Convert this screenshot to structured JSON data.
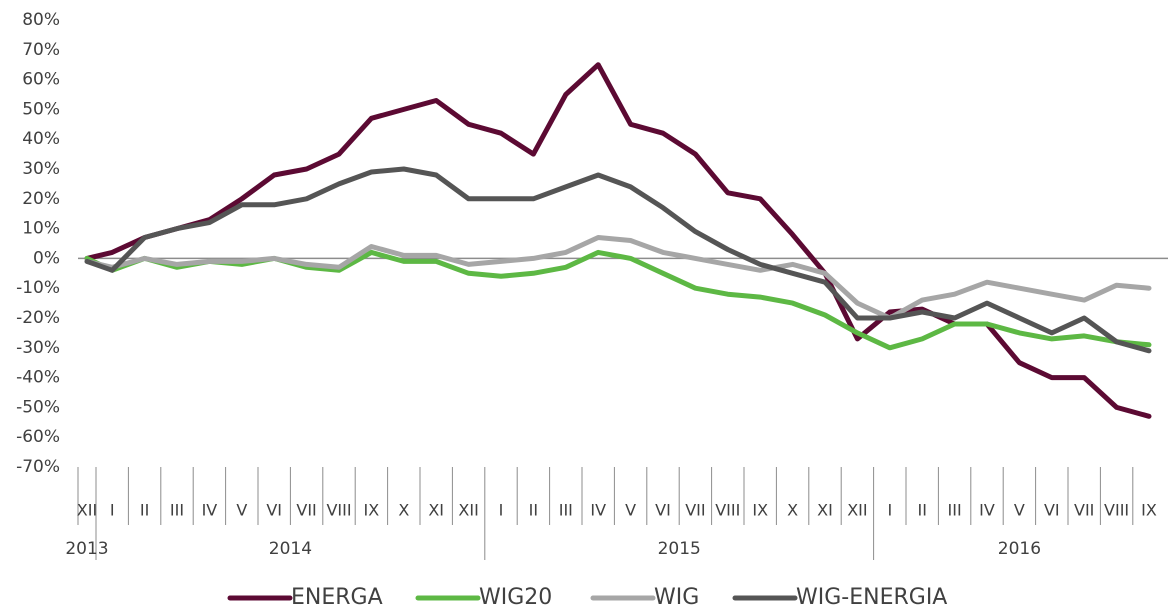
{
  "chart_data": {
    "type": "line",
    "categories": [
      "XII",
      "I",
      "II",
      "III",
      "IV",
      "V",
      "VI",
      "VII",
      "VIII",
      "IX",
      "X",
      "XI",
      "XII",
      "I",
      "II",
      "III",
      "IV",
      "V",
      "VI",
      "VII",
      "VIII",
      "IX",
      "X",
      "XI",
      "XII",
      "I",
      "II",
      "III",
      "IV",
      "V",
      "VI",
      "VII",
      "VIII",
      "IX"
    ],
    "years": [
      "2013",
      "2014",
      "2015",
      "2016"
    ],
    "ylim": [
      -70,
      80
    ],
    "yticks": [
      {
        "value": -70,
        "label": "-70%"
      },
      {
        "value": -60,
        "label": "-60%"
      },
      {
        "value": -50,
        "label": "-50%"
      },
      {
        "value": -40,
        "label": "-40%"
      },
      {
        "value": -30,
        "label": "-30%"
      },
      {
        "value": -20,
        "label": "-20%"
      },
      {
        "value": -10,
        "label": "-10%"
      },
      {
        "value": 0,
        "label": "0%"
      },
      {
        "value": 10,
        "label": "10%"
      },
      {
        "value": 20,
        "label": "20%"
      },
      {
        "value": 30,
        "label": "30%"
      },
      {
        "value": 40,
        "label": "40%"
      },
      {
        "value": 50,
        "label": "50%"
      },
      {
        "value": 60,
        "label": "60%"
      },
      {
        "value": 70,
        "label": "70%"
      },
      {
        "value": 80,
        "label": "80%"
      }
    ],
    "zero_line": true,
    "legend": "bottom",
    "series": [
      {
        "name": "ENERGA",
        "color": "#5c0a33",
        "values": [
          0,
          2,
          7,
          10,
          13,
          20,
          28,
          30,
          35,
          47,
          50,
          53,
          45,
          42,
          35,
          55,
          65,
          45,
          42,
          35,
          22,
          20,
          8,
          -5,
          -27,
          -18,
          -17,
          -22,
          -22,
          -35,
          -40,
          -40,
          -50,
          -53
        ]
      },
      {
        "name": "WIG20",
        "color": "#5db844",
        "values": [
          0,
          -4,
          0,
          -3,
          -1,
          -2,
          0,
          -3,
          -4,
          2,
          -1,
          -1,
          -5,
          -6,
          -5,
          -3,
          2,
          0,
          -5,
          -10,
          -12,
          -13,
          -15,
          -19,
          -25,
          -30,
          -27,
          -22,
          -22,
          -25,
          -27,
          -26,
          -28,
          -29
        ]
      },
      {
        "name": "WIG",
        "color": "#a6a6a6",
        "values": [
          -1,
          -3,
          0,
          -2,
          -1,
          -1,
          0,
          -2,
          -3,
          4,
          1,
          1,
          -2,
          -1,
          0,
          2,
          7,
          6,
          2,
          0,
          -2,
          -4,
          -2,
          -5,
          -15,
          -20,
          -14,
          -12,
          -8,
          -10,
          -12,
          -14,
          -9,
          -10
        ]
      },
      {
        "name": "WIG-ENERGIA",
        "color": "#555555",
        "values": [
          -1,
          -4,
          7,
          10,
          12,
          18,
          18,
          20,
          25,
          29,
          30,
          28,
          20,
          20,
          20,
          24,
          28,
          24,
          17,
          9,
          3,
          -2,
          -5,
          -8,
          -20,
          -20,
          -18,
          -20,
          -15,
          -20,
          -25,
          -20,
          -28,
          -31
        ]
      }
    ]
  }
}
